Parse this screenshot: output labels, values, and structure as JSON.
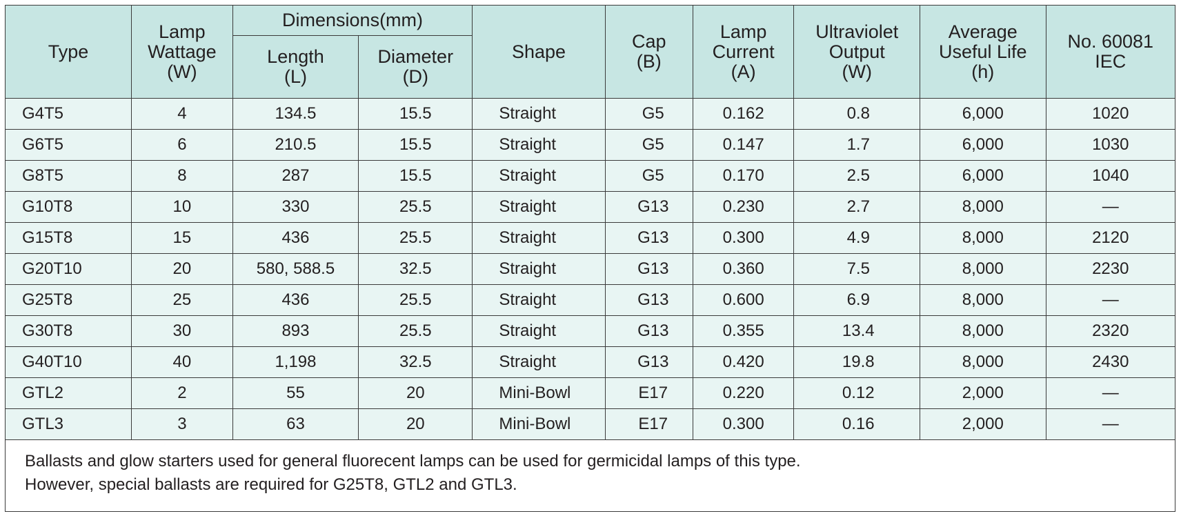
{
  "header": {
    "type": "Type",
    "wattage": [
      "Lamp",
      "Wattage",
      "(W)"
    ],
    "dimensions": "Dimensions(mm)",
    "length": [
      "Length",
      "(L)"
    ],
    "diameter": [
      "Diameter",
      "(D)"
    ],
    "shape": "Shape",
    "cap": [
      "Cap",
      "(B)"
    ],
    "current": [
      "Lamp",
      "Current",
      "(A)"
    ],
    "uv": [
      "Ultraviolet",
      "Output",
      "(W)"
    ],
    "life": [
      "Average",
      "Useful Life",
      "(h)"
    ],
    "iec": [
      "No. 60081",
      "IEC"
    ]
  },
  "rows": [
    {
      "type": "G4T5",
      "wattage": "4",
      "length": "134.5",
      "diameter": "15.5",
      "shape": "Straight",
      "cap": "G5",
      "current": "0.162",
      "uv": "0.8",
      "life": "6,000",
      "iec": "1020"
    },
    {
      "type": "G6T5",
      "wattage": "6",
      "length": "210.5",
      "diameter": "15.5",
      "shape": "Straight",
      "cap": "G5",
      "current": "0.147",
      "uv": "1.7",
      "life": "6,000",
      "iec": "1030"
    },
    {
      "type": "G8T5",
      "wattage": "8",
      "length": "287",
      "diameter": "15.5",
      "shape": "Straight",
      "cap": "G5",
      "current": "0.170",
      "uv": "2.5",
      "life": "6,000",
      "iec": "1040"
    },
    {
      "type": "G10T8",
      "wattage": "10",
      "length": "330",
      "diameter": "25.5",
      "shape": "Straight",
      "cap": "G13",
      "current": "0.230",
      "uv": "2.7",
      "life": "8,000",
      "iec": "—"
    },
    {
      "type": "G15T8",
      "wattage": "15",
      "length": "436",
      "diameter": "25.5",
      "shape": "Straight",
      "cap": "G13",
      "current": "0.300",
      "uv": "4.9",
      "life": "8,000",
      "iec": "2120"
    },
    {
      "type": "G20T10",
      "wattage": "20",
      "length": "580, 588.5",
      "diameter": "32.5",
      "shape": "Straight",
      "cap": "G13",
      "current": "0.360",
      "uv": "7.5",
      "life": "8,000",
      "iec": "2230"
    },
    {
      "type": "G25T8",
      "wattage": "25",
      "length": "436",
      "diameter": "25.5",
      "shape": "Straight",
      "cap": "G13",
      "current": "0.600",
      "uv": "6.9",
      "life": "8,000",
      "iec": "—"
    },
    {
      "type": "G30T8",
      "wattage": "30",
      "length": "893",
      "diameter": "25.5",
      "shape": "Straight",
      "cap": "G13",
      "current": "0.355",
      "uv": "13.4",
      "life": "8,000",
      "iec": "2320"
    },
    {
      "type": "G40T10",
      "wattage": "40",
      "length": "1,198",
      "diameter": "32.5",
      "shape": "Straight",
      "cap": "G13",
      "current": "0.420",
      "uv": "19.8",
      "life": "8,000",
      "iec": "2430"
    },
    {
      "type": "GTL2",
      "wattage": "2",
      "length": "55",
      "diameter": "20",
      "shape": "Mini-Bowl",
      "cap": "E17",
      "current": "0.220",
      "uv": "0.12",
      "life": "2,000",
      "iec": "—"
    },
    {
      "type": "GTL3",
      "wattage": "3",
      "length": "63",
      "diameter": "20",
      "shape": "Mini-Bowl",
      "cap": "E17",
      "current": "0.300",
      "uv": "0.16",
      "life": "2,000",
      "iec": "—"
    }
  ],
  "notes": [
    "Ballasts and glow starters used for general fluorecent lamps can be used for germicidal lamps of this type.",
    "However, special ballasts are required for G25T8, GTL2 and GTL3."
  ],
  "colors": {
    "header_bg": "#c7e6e3",
    "row_bg": "#e8f5f3",
    "border": "#3a3a3a",
    "text": "#231f20"
  }
}
